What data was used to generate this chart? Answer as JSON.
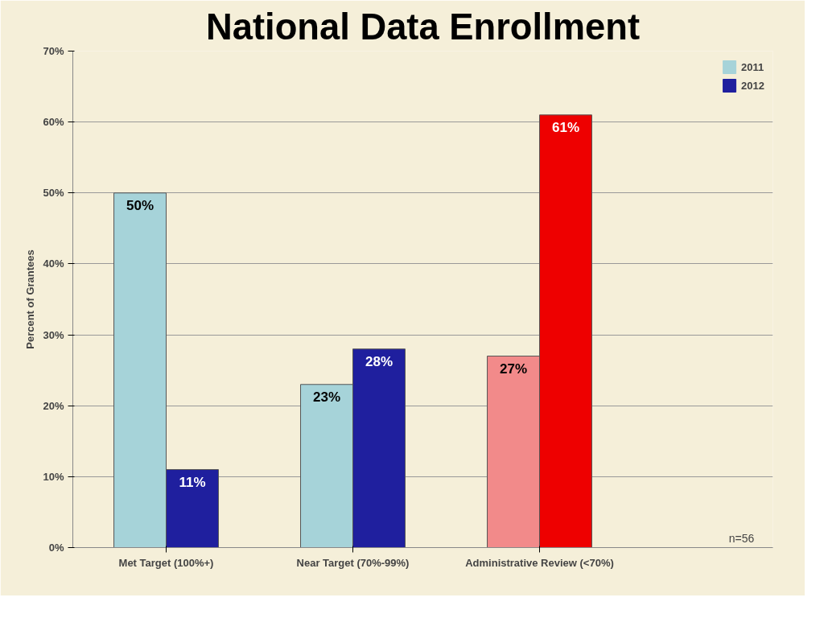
{
  "chart_data": {
    "type": "bar",
    "title": "National Data Enrollment",
    "ylabel": "Percent of Grantees",
    "categories": [
      "Met Target (100%+)",
      "Near Target (70%-99%)",
      "Administrative Review (<70%)"
    ],
    "series": [
      {
        "name": "2011",
        "color": "#a6d3d9",
        "colors": [
          "#a6d3d9",
          "#a6d3d9",
          "#f28a8a"
        ],
        "values": [
          50,
          23,
          27
        ],
        "value_labels": [
          "50%",
          "23%",
          "27%"
        ]
      },
      {
        "name": "2012",
        "color": "#1f1f9e",
        "colors": [
          "#1f1f9e",
          "#1f1f9e",
          "#ee0000"
        ],
        "values": [
          11,
          28,
          61
        ],
        "value_labels": [
          "11%",
          "28%",
          "61%"
        ]
      }
    ],
    "ylim": [
      0,
      70
    ],
    "yticks": [
      {
        "value": 0,
        "label": "0%"
      },
      {
        "value": 10,
        "label": "10%"
      },
      {
        "value": 20,
        "label": "20%"
      },
      {
        "value": 30,
        "label": "30%"
      },
      {
        "value": 40,
        "label": "40%"
      },
      {
        "value": 50,
        "label": "50%"
      },
      {
        "value": 60,
        "label": "60%"
      },
      {
        "value": 70,
        "label": "70%"
      }
    ],
    "grid": "y",
    "legend": "right",
    "annotations": [
      "n=56"
    ]
  }
}
